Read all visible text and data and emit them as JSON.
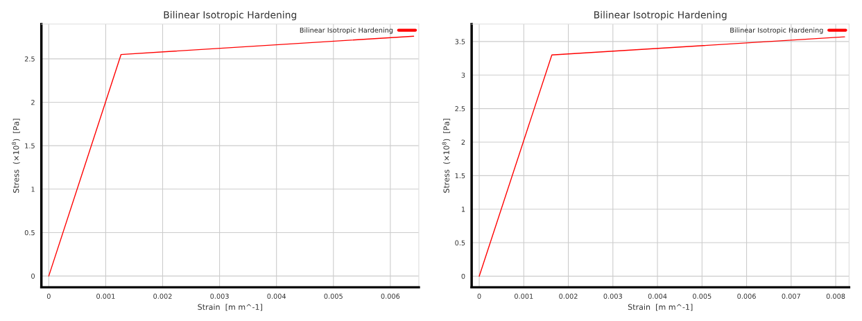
{
  "chart_data": [
    {
      "type": "line",
      "title": "Bilinear Isotropic Hardening",
      "xlabel": "Strain  [m m^-1]",
      "ylabel": "Stress  (×10$^{8}$)  [Pa]",
      "x": [
        0,
        0.00127,
        0.00641
      ],
      "series": [
        {
          "name": "Bilinear Isotropic Hardening",
          "color": "#ff0000",
          "values": [
            0,
            2.55,
            2.76
          ]
        }
      ],
      "xlim": [
        -0.00013,
        0.0065
      ],
      "xticks": [
        0,
        0.001,
        0.002,
        0.003,
        0.004,
        0.005,
        0.006
      ],
      "ylim": [
        -0.13,
        2.9
      ],
      "yticks": [
        0,
        0.5,
        1,
        1.5,
        2,
        2.5
      ],
      "grid": true,
      "legend": "top right"
    },
    {
      "type": "line",
      "title": "Bilinear Isotropic Hardening",
      "xlabel": "Strain  [m m^-1]",
      "ylabel": "Stress  (×10$^{8}$)  [Pa]",
      "x": [
        0,
        0.00163,
        0.0082
      ],
      "series": [
        {
          "name": "Bilinear Isotropic Hardening",
          "color": "#ff0000",
          "values": [
            0,
            3.3,
            3.57
          ]
        }
      ],
      "xlim": [
        -0.00017,
        0.0083
      ],
      "xticks": [
        0,
        0.001,
        0.002,
        0.003,
        0.004,
        0.005,
        0.006,
        0.007,
        0.008
      ],
      "ylim": [
        -0.165,
        3.76
      ],
      "yticks": [
        0,
        0.5,
        1,
        1.5,
        2,
        2.5,
        3,
        3.5
      ],
      "grid": true,
      "legend": "top right"
    }
  ]
}
